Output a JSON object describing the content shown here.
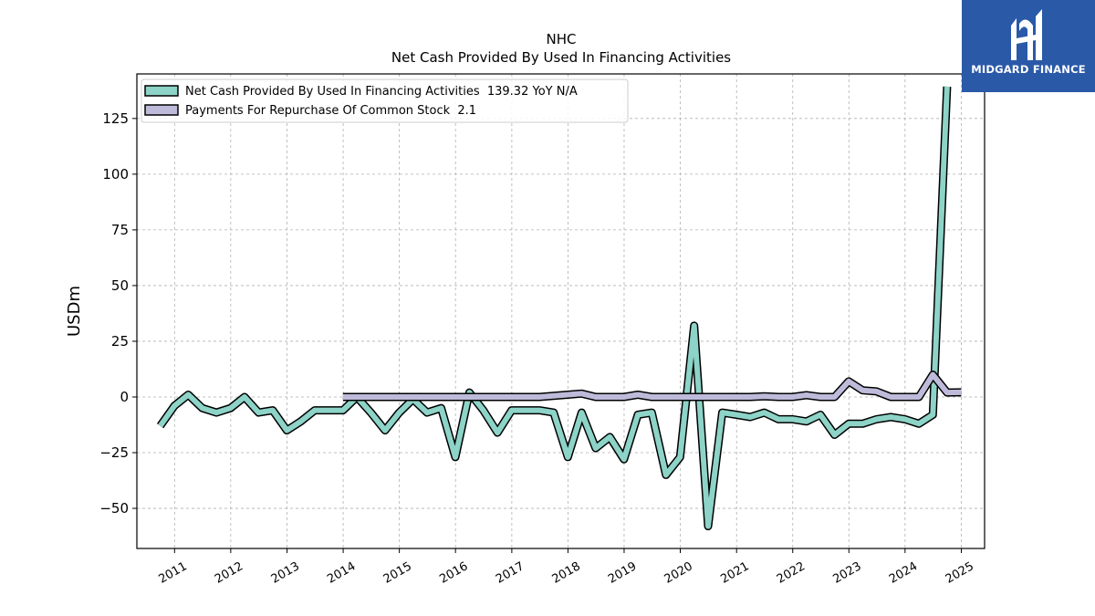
{
  "logo": {
    "text": "MIDGARD FINANCE"
  },
  "chart_data": {
    "type": "line",
    "title": "NHC",
    "subtitle": "Net Cash Provided By Used In Financing Activities",
    "xlabel": "",
    "ylabel": "USDm",
    "xlim": [
      "2010-05-01",
      "2025-06-01"
    ],
    "ylim": [
      -68,
      145
    ],
    "yticks": [
      -50,
      -25,
      0,
      25,
      50,
      75,
      100,
      125
    ],
    "xticks": [
      "2011",
      "2012",
      "2013",
      "2014",
      "2015",
      "2016",
      "2017",
      "2018",
      "2019",
      "2020",
      "2021",
      "2022",
      "2023",
      "2024",
      "2025"
    ],
    "grid": true,
    "legend_position": "top-left",
    "series": [
      {
        "name": "Net Cash Provided By Used In Financing Activities",
        "legend_label": "Net Cash Provided By Used In Financing Activities  139.32 YoY N/A",
        "color": "#8dd3c7",
        "x": [
          "2010-09-30",
          "2010-12-31",
          "2011-03-31",
          "2011-06-30",
          "2011-09-30",
          "2011-12-31",
          "2012-03-31",
          "2012-06-30",
          "2012-09-30",
          "2012-12-31",
          "2013-03-31",
          "2013-06-30",
          "2013-09-30",
          "2013-12-31",
          "2014-03-31",
          "2014-06-30",
          "2014-09-30",
          "2014-12-31",
          "2015-03-31",
          "2015-06-30",
          "2015-09-30",
          "2015-12-31",
          "2016-03-31",
          "2016-06-30",
          "2016-09-30",
          "2016-12-31",
          "2017-03-31",
          "2017-06-30",
          "2017-09-30",
          "2017-12-31",
          "2018-03-31",
          "2018-06-30",
          "2018-09-30",
          "2018-12-31",
          "2019-03-31",
          "2019-06-30",
          "2019-09-30",
          "2019-12-31",
          "2020-03-31",
          "2020-06-30",
          "2020-09-30",
          "2020-12-31",
          "2021-03-31",
          "2021-06-30",
          "2021-09-30",
          "2021-12-31",
          "2022-03-31",
          "2022-06-30",
          "2022-09-30",
          "2022-12-31",
          "2023-03-31",
          "2023-06-30",
          "2023-09-30",
          "2023-12-31",
          "2024-03-31",
          "2024-06-30",
          "2024-09-30"
        ],
        "values": [
          -13,
          -4,
          1,
          -5,
          -7,
          -5,
          0,
          -7,
          -6,
          -15,
          -11,
          -6,
          -6,
          -6,
          0,
          -7,
          -15,
          -7,
          -1,
          -7,
          -5,
          -27,
          2,
          -6,
          -16,
          -6,
          -6,
          -6,
          -7,
          -27,
          -7,
          -23,
          -18,
          -28,
          -8,
          -7,
          -35,
          -27,
          32,
          -58,
          -7,
          -8,
          -9,
          -7,
          -10,
          -10,
          -11,
          -8,
          -17,
          -12,
          -12,
          -10,
          -9,
          -10,
          -12,
          -8,
          139.32
        ]
      },
      {
        "name": "Payments For Repurchase Of Common Stock",
        "legend_label": "Payments For Repurchase Of Common Stock  2.1",
        "color": "#bebada",
        "x": [
          "2013-12-31",
          "2014-06-30",
          "2014-12-31",
          "2015-06-30",
          "2015-12-31",
          "2016-06-30",
          "2016-12-31",
          "2017-06-30",
          "2017-12-31",
          "2018-03-31",
          "2018-06-30",
          "2018-09-30",
          "2018-12-31",
          "2019-03-31",
          "2019-06-30",
          "2019-09-30",
          "2019-12-31",
          "2020-03-31",
          "2020-06-30",
          "2020-09-30",
          "2020-12-31",
          "2021-03-31",
          "2021-06-30",
          "2021-09-30",
          "2021-12-31",
          "2022-03-31",
          "2022-06-30",
          "2022-09-30",
          "2022-12-31",
          "2023-03-31",
          "2023-06-30",
          "2023-09-30",
          "2023-12-31",
          "2024-03-31",
          "2024-06-30",
          "2024-09-30",
          "2024-12-31"
        ],
        "values": [
          0,
          0,
          0,
          0,
          0,
          0,
          0,
          0,
          1,
          1.5,
          0,
          0,
          0,
          1,
          0,
          0,
          0,
          0,
          0,
          0,
          0,
          0,
          0.3,
          0,
          0,
          0.8,
          0,
          0,
          7,
          3,
          2.5,
          0,
          0,
          0,
          10,
          2,
          2.1
        ]
      }
    ]
  }
}
